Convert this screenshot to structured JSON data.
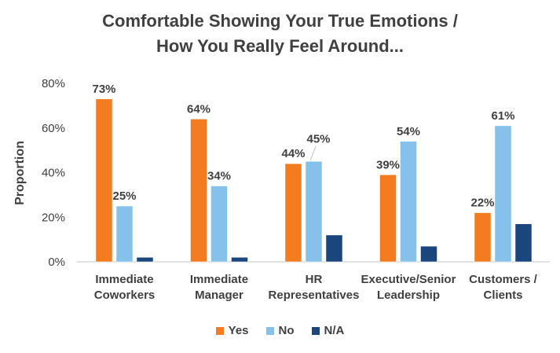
{
  "chart_data": {
    "type": "bar",
    "title_lines": [
      "Comfortable Showing Your True Emotions /",
      "How You Really Feel Around..."
    ],
    "xlabel": "",
    "ylabel": "Proportion",
    "ylim": [
      0,
      80
    ],
    "yticks": [
      0,
      20,
      40,
      60,
      80
    ],
    "ytick_labels": [
      "0%",
      "20%",
      "40%",
      "60%",
      "80%"
    ],
    "grid": false,
    "legend_position": "bottom",
    "categories": [
      [
        "Immediate",
        "Coworkers"
      ],
      [
        "Immediate",
        "Manager"
      ],
      [
        "HR",
        "Representatives"
      ],
      [
        "Executive/Senior",
        "Leadership"
      ],
      [
        "Customers /",
        "Clients"
      ]
    ],
    "series": [
      {
        "name": "Yes",
        "color": "#F47C20",
        "values": [
          73,
          64,
          44,
          39,
          22
        ],
        "labels": [
          "73%",
          "64%",
          "44%",
          "39%",
          "22%"
        ]
      },
      {
        "name": "No",
        "color": "#85C1EA",
        "values": [
          25,
          34,
          45,
          54,
          61
        ],
        "labels": [
          "25%",
          "34%",
          "45%",
          "54%",
          "61%"
        ]
      },
      {
        "name": "N/A",
        "color": "#1B467D",
        "values": [
          2,
          2,
          12,
          7,
          17
        ],
        "labels": [
          null,
          null,
          null,
          null,
          null
        ]
      }
    ]
  }
}
